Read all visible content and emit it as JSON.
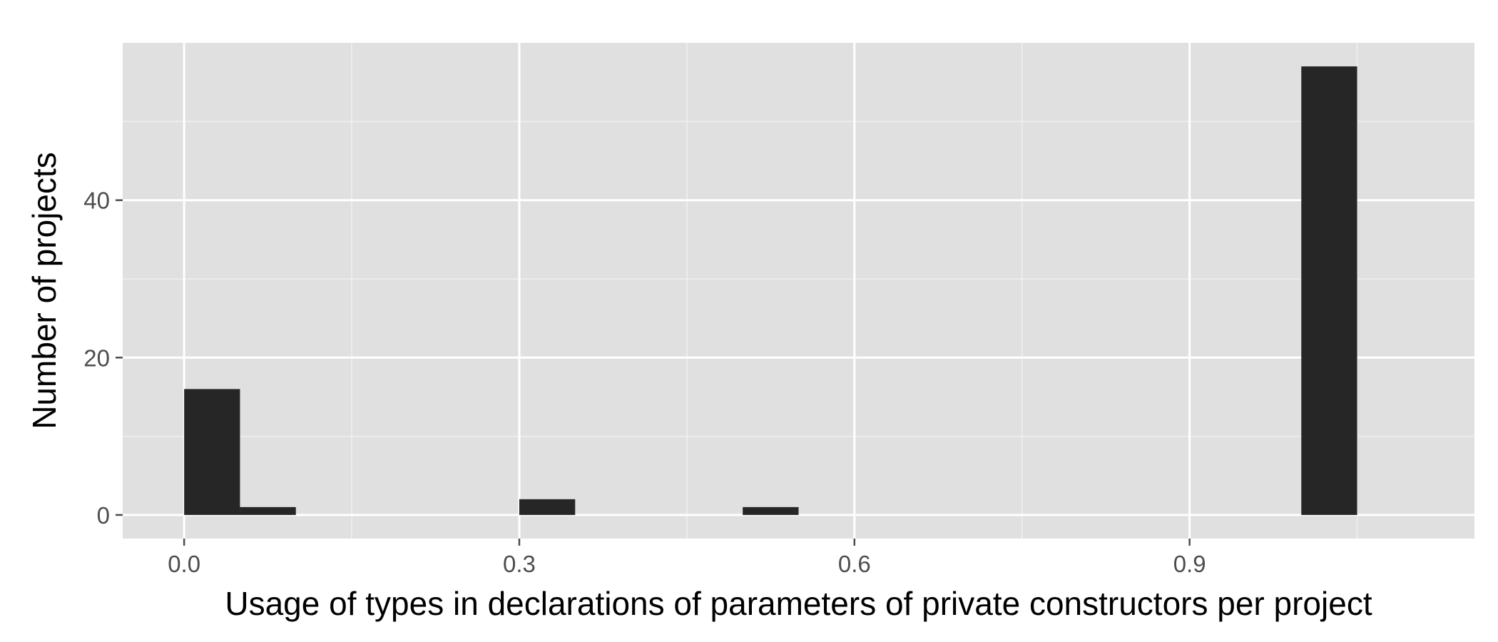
{
  "chart_data": {
    "type": "bar",
    "title": "",
    "xlabel": "Usage of types in declarations of parameters of private constructors per project",
    "ylabel": "Number of projects",
    "xlim": [
      -0.055,
      1.155
    ],
    "ylim": [
      -3,
      60
    ],
    "x_ticks": [
      0.0,
      0.3,
      0.6,
      0.9
    ],
    "x_tick_labels": [
      "0.0",
      "0.3",
      "0.6",
      "0.9"
    ],
    "x_minor_ticks": [
      0.15,
      0.45,
      0.75,
      1.05
    ],
    "y_ticks": [
      0,
      20,
      40
    ],
    "y_tick_labels": [
      "0",
      "20",
      "40"
    ],
    "y_minor_ticks": [
      10,
      30,
      50
    ],
    "grid": true,
    "legend": "none",
    "bin_width": 0.05,
    "bins": [
      {
        "x0": 0.0,
        "x1": 0.05,
        "count": 16
      },
      {
        "x0": 0.05,
        "x1": 0.1,
        "count": 1
      },
      {
        "x0": 0.3,
        "x1": 0.35,
        "count": 2
      },
      {
        "x0": 0.5,
        "x1": 0.55,
        "count": 1
      },
      {
        "x0": 1.0,
        "x1": 1.05,
        "count": 57
      }
    ],
    "colors": {
      "panel": "#e0e0e0",
      "grid_major": "#ffffff",
      "grid_minor": "#f0f0f0",
      "bar": "#262626",
      "tick": "#4d4d4d"
    }
  }
}
